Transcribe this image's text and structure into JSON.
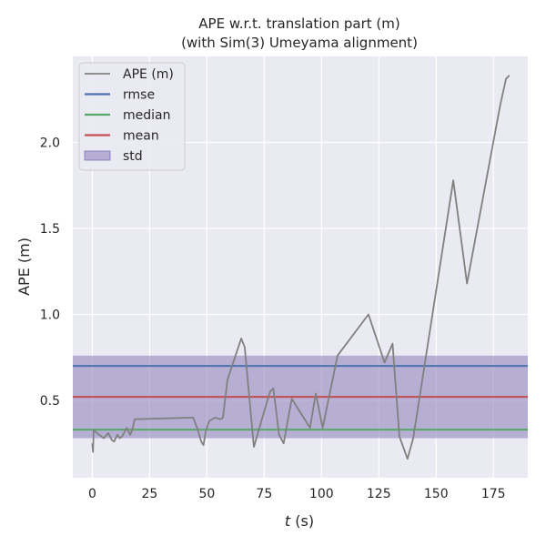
{
  "chart_data": {
    "type": "line",
    "title": "APE w.r.t. translation part (m)",
    "subtitle": "(with Sim(3) Umeyama alignment)",
    "xlabel_var": "t",
    "xlabel_unit": " (s)",
    "ylabel": "APE (m)",
    "xlim": [
      -8.5,
      190
    ],
    "ylim": [
      0.05,
      2.5
    ],
    "xticks": [
      0,
      25,
      50,
      75,
      100,
      125,
      150,
      175
    ],
    "yticks": [
      0.5,
      1.0,
      1.5,
      2.0
    ],
    "grid": true,
    "legend_position": "top-left",
    "colors": {
      "background": "#eaeaf2",
      "grid": "#ffffff",
      "ape": "#808080",
      "rmse": "#4c72b0",
      "median": "#55a868",
      "mean": "#c44e52",
      "std": "#8172b3"
    },
    "legend": [
      "APE (m)",
      "rmse",
      "median",
      "mean",
      "std"
    ],
    "series": [
      {
        "name": "APE (m)",
        "x": [
          0,
          0.3,
          0.6,
          1.2,
          3,
          5,
          7,
          8.5,
          9.5,
          11,
          12,
          13,
          15,
          16.5,
          17.5,
          18.5,
          44,
          46,
          47.5,
          48.5,
          49.5,
          51,
          53.5,
          56,
          57,
          59,
          65,
          66.5,
          70.5,
          77.5,
          79,
          81.5,
          83.5,
          87,
          95,
          97.5,
          100.5,
          107,
          120.5,
          127.5,
          131,
          134,
          137.5,
          140,
          157.5,
          163.5,
          178,
          180.5,
          182
        ],
        "y": [
          0.25,
          0.2,
          0.33,
          0.32,
          0.3,
          0.28,
          0.31,
          0.27,
          0.26,
          0.3,
          0.28,
          0.29,
          0.34,
          0.3,
          0.33,
          0.39,
          0.4,
          0.33,
          0.26,
          0.24,
          0.32,
          0.38,
          0.4,
          0.39,
          0.4,
          0.62,
          0.86,
          0.81,
          0.23,
          0.55,
          0.57,
          0.3,
          0.25,
          0.51,
          0.34,
          0.54,
          0.34,
          0.76,
          1.0,
          0.72,
          0.83,
          0.29,
          0.16,
          0.28,
          1.78,
          1.18,
          2.22,
          2.37,
          2.39
        ]
      }
    ],
    "stats": {
      "rmse": 0.7,
      "median": 0.33,
      "mean": 0.52,
      "std": 0.24
    }
  }
}
